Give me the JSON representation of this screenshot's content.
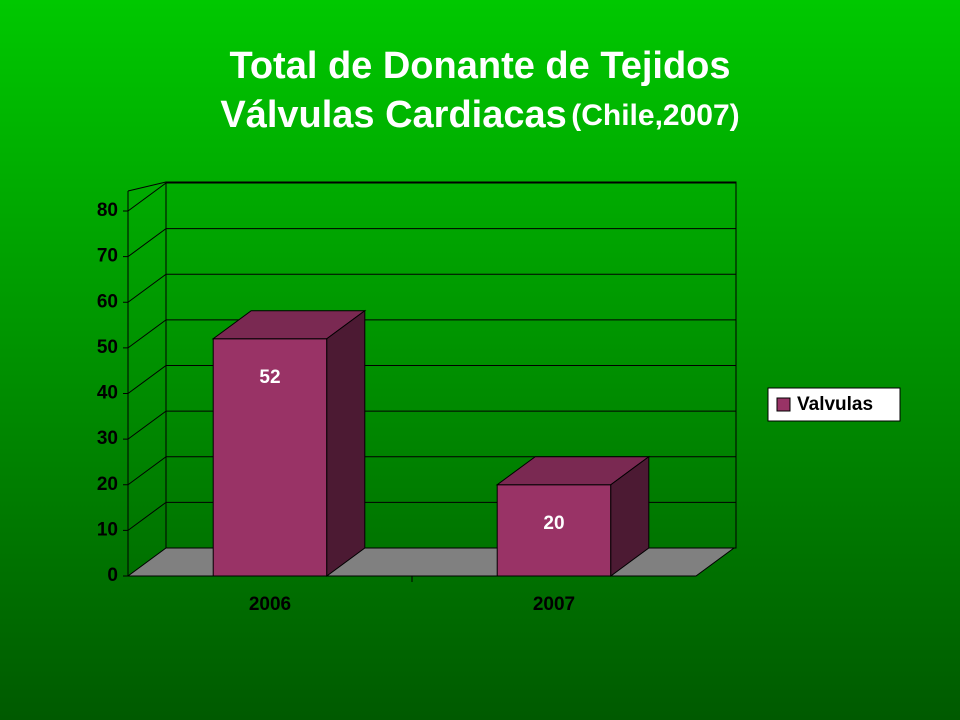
{
  "chart_data": {
    "type": "bar3d",
    "title": "Total de Donante de Tejidos",
    "subtitle": "Válvulas Cardiacas",
    "subtitle_note": "(Chile,2007)",
    "categories": [
      "2006",
      "2007"
    ],
    "series": [
      {
        "name": "Valvulas",
        "color": "#993366",
        "values": [
          52,
          20
        ]
      }
    ],
    "ylim": [
      0,
      80
    ],
    "yticks": [
      0,
      10,
      20,
      30,
      40,
      50,
      60,
      70,
      80
    ],
    "grid": true,
    "legend": "right"
  }
}
